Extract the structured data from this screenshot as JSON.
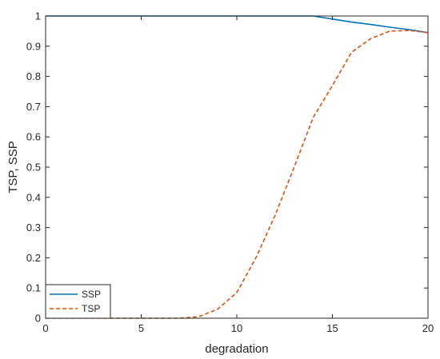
{
  "chart_data": {
    "type": "line",
    "title": "",
    "xlabel": "degradation",
    "ylabel": "TSP, SSP",
    "xlim": [
      0,
      20
    ],
    "ylim": [
      0,
      1
    ],
    "xticks": [
      0,
      5,
      10,
      15,
      20
    ],
    "yticks": [
      0,
      0.1,
      0.2,
      0.3,
      0.4,
      0.5,
      0.6,
      0.7,
      0.8,
      0.9,
      1
    ],
    "grid": false,
    "legend_position": "bottom-left",
    "x": [
      0,
      1,
      2,
      3,
      4,
      5,
      6,
      7,
      8,
      9,
      10,
      11,
      12,
      13,
      14,
      15,
      16,
      17,
      18,
      19,
      20
    ],
    "series": [
      {
        "name": "SSP",
        "style": "solid",
        "color": "#0072BD",
        "values": [
          1,
          1,
          1,
          1,
          1,
          1,
          1,
          1,
          1,
          1,
          1,
          1,
          1,
          1,
          1,
          0.99,
          0.98,
          0.972,
          0.963,
          0.955,
          0.945
        ]
      },
      {
        "name": "TSP",
        "style": "dashed",
        "color": "#D95319",
        "values": [
          0,
          0,
          0,
          0,
          0,
          0,
          0,
          0,
          0.005,
          0.03,
          0.085,
          0.2,
          0.34,
          0.5,
          0.665,
          0.77,
          0.88,
          0.925,
          0.95,
          0.952,
          0.945
        ]
      }
    ]
  }
}
